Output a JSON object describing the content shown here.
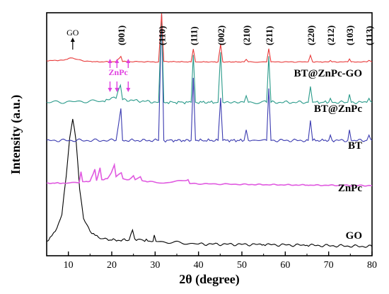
{
  "chart_data": {
    "type": "line",
    "xlabel": "2θ (degree)",
    "ylabel": "Intensity (a.u.)",
    "xlim": [
      5,
      80
    ],
    "xticks": [
      10,
      20,
      30,
      40,
      50,
      60,
      70,
      80
    ],
    "y_ticks_shown": false,
    "grid": false,
    "series": [
      {
        "name": "GO",
        "color": "#000000",
        "points": [
          [
            5,
            0.04
          ],
          [
            7,
            0.12
          ],
          [
            8.5,
            0.25
          ],
          [
            9.5,
            0.55
          ],
          [
            10.3,
            0.85
          ],
          [
            11,
            1.0
          ],
          [
            11.8,
            0.82
          ],
          [
            12.6,
            0.45
          ],
          [
            13.5,
            0.22
          ],
          [
            15,
            0.12
          ],
          [
            17,
            0.07
          ],
          [
            20,
            0.05
          ],
          [
            24,
            0.05
          ],
          [
            24.8,
            0.13
          ],
          [
            25.3,
            0.06
          ],
          [
            29.5,
            0.04
          ],
          [
            29.8,
            0.09
          ],
          [
            30.2,
            0.04
          ],
          [
            40,
            0.02
          ],
          [
            55,
            0.015
          ],
          [
            65,
            0.01
          ],
          [
            80,
            0.0
          ]
        ]
      },
      {
        "name": "ZnPc",
        "color": "#e05ae0",
        "points": [
          [
            5,
            0.05
          ],
          [
            9,
            0.05
          ],
          [
            12.5,
            0.06
          ],
          [
            12.9,
            0.28
          ],
          [
            13.3,
            0.08
          ],
          [
            15,
            0.09
          ],
          [
            16.1,
            0.33
          ],
          [
            16.5,
            0.1
          ],
          [
            17.3,
            0.36
          ],
          [
            17.7,
            0.12
          ],
          [
            19,
            0.14
          ],
          [
            19.9,
            0.26
          ],
          [
            20.6,
            0.42
          ],
          [
            21,
            0.18
          ],
          [
            22.2,
            0.26
          ],
          [
            22.6,
            0.14
          ],
          [
            24,
            0.12
          ],
          [
            25,
            0.2
          ],
          [
            25.4,
            0.12
          ],
          [
            26.6,
            0.18
          ],
          [
            27,
            0.1
          ],
          [
            28.5,
            0.08
          ],
          [
            32,
            0.05
          ],
          [
            37.6,
            0.12
          ],
          [
            38,
            0.04
          ],
          [
            50,
            0.025
          ],
          [
            65,
            0.01
          ],
          [
            80,
            0.0
          ]
        ]
      },
      {
        "name": "BT",
        "color": "#3a3ab0",
        "points": [
          [
            5,
            0.02
          ],
          [
            21,
            0.02
          ],
          [
            22.1,
            0.26
          ],
          [
            22.5,
            0.02
          ],
          [
            30.8,
            0.02
          ],
          [
            31.5,
            1.0
          ],
          [
            32,
            0.02
          ],
          [
            38.3,
            0.02
          ],
          [
            38.8,
            0.49
          ],
          [
            39.3,
            0.02
          ],
          [
            44.5,
            0.02
          ],
          [
            45.1,
            0.34
          ],
          [
            45.6,
            0.02
          ],
          [
            50.5,
            0.02
          ],
          [
            51,
            0.1
          ],
          [
            51.5,
            0.02
          ],
          [
            55.7,
            0.02
          ],
          [
            56.2,
            0.41
          ],
          [
            56.7,
            0.02
          ],
          [
            65.3,
            0.02
          ],
          [
            65.8,
            0.17
          ],
          [
            66.3,
            0.02
          ],
          [
            70,
            0.02
          ],
          [
            70.4,
            0.06
          ],
          [
            70.8,
            0.02
          ],
          [
            74.4,
            0.02
          ],
          [
            74.8,
            0.1
          ],
          [
            75.2,
            0.02
          ],
          [
            78.8,
            0.02
          ],
          [
            79.3,
            0.06
          ],
          [
            80,
            0.02
          ]
        ]
      },
      {
        "name": "BT@ZnPc",
        "color": "#2a9a8a",
        "points": [
          [
            5,
            0.03
          ],
          [
            18,
            0.04
          ],
          [
            19.5,
            0.05
          ],
          [
            20.5,
            0.07
          ],
          [
            21,
            0.06
          ],
          [
            22,
            0.16
          ],
          [
            22.5,
            0.05
          ],
          [
            30.8,
            0.03
          ],
          [
            31.5,
            0.84
          ],
          [
            32,
            0.03
          ],
          [
            38.3,
            0.03
          ],
          [
            38.8,
            0.39
          ],
          [
            39.3,
            0.03
          ],
          [
            44.5,
            0.03
          ],
          [
            45.1,
            0.41
          ],
          [
            45.6,
            0.03
          ],
          [
            50.5,
            0.03
          ],
          [
            51,
            0.08
          ],
          [
            51.5,
            0.03
          ],
          [
            55.7,
            0.03
          ],
          [
            56.2,
            0.38
          ],
          [
            56.7,
            0.03
          ],
          [
            65.3,
            0.03
          ],
          [
            65.8,
            0.15
          ],
          [
            66.3,
            0.03
          ],
          [
            70,
            0.03
          ],
          [
            70.4,
            0.06
          ],
          [
            70.8,
            0.03
          ],
          [
            74.4,
            0.03
          ],
          [
            74.8,
            0.09
          ],
          [
            75.2,
            0.03
          ],
          [
            78.8,
            0.03
          ],
          [
            79.3,
            0.06
          ],
          [
            80,
            0.03
          ]
        ]
      },
      {
        "name": "BT@ZnPc-GO",
        "color": "#e83a3a",
        "points": [
          [
            5,
            0.08
          ],
          [
            9,
            0.1
          ],
          [
            10.5,
            0.16
          ],
          [
            11.5,
            0.13
          ],
          [
            14,
            0.07
          ],
          [
            17,
            0.05
          ],
          [
            21,
            0.06
          ],
          [
            22.1,
            0.2
          ],
          [
            22.5,
            0.06
          ],
          [
            30.8,
            0.05
          ],
          [
            31.5,
            1.4
          ],
          [
            32,
            0.06
          ],
          [
            38.3,
            0.05
          ],
          [
            38.8,
            0.4
          ],
          [
            39.3,
            0.05
          ],
          [
            44.5,
            0.05
          ],
          [
            45.1,
            0.53
          ],
          [
            45.6,
            0.05
          ],
          [
            50.5,
            0.05
          ],
          [
            51,
            0.12
          ],
          [
            51.5,
            0.05
          ],
          [
            55.7,
            0.05
          ],
          [
            56.2,
            0.41
          ],
          [
            56.7,
            0.05
          ],
          [
            65.3,
            0.05
          ],
          [
            65.8,
            0.23
          ],
          [
            66.3,
            0.05
          ],
          [
            70,
            0.05
          ],
          [
            70.4,
            0.09
          ],
          [
            70.8,
            0.05
          ],
          [
            74.4,
            0.05
          ],
          [
            74.8,
            0.13
          ],
          [
            75.2,
            0.05
          ],
          [
            78.8,
            0.05
          ],
          [
            79.3,
            0.09
          ],
          [
            80,
            0.05
          ]
        ]
      }
    ],
    "peak_labels": [
      {
        "text": "(001)",
        "x": 22.1
      },
      {
        "text": "(110)",
        "x": 31.5
      },
      {
        "text": "(111)",
        "x": 38.8
      },
      {
        "text": "(002)",
        "x": 45.1
      },
      {
        "text": "(210)",
        "x": 51
      },
      {
        "text": "(211)",
        "x": 56.2
      },
      {
        "text": "(220)",
        "x": 65.8
      },
      {
        "text": "(212)",
        "x": 70.4
      },
      {
        "text": "(103)",
        "x": 74.8
      },
      {
        "text": "(113)",
        "x": 79.3
      }
    ],
    "annotations": {
      "go_marker": {
        "text": "GO",
        "x": 11
      },
      "znpc_marker": {
        "text": "ZnPc",
        "up_arrows_x": [
          19.6,
          21.2,
          23.8
        ],
        "down_arrows_x": [
          19.6,
          21.2,
          23.8
        ],
        "color": "#e040e0"
      }
    }
  }
}
